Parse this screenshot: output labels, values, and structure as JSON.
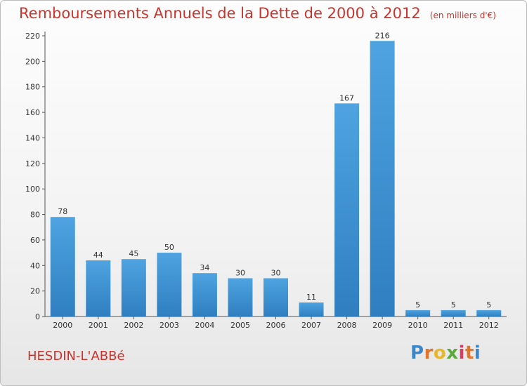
{
  "title": "Remboursements Annuels de la Dette de 2000 à 2012",
  "subtitle": "(en milliers d'€)",
  "commune": "HESDIN-L'ABBé",
  "logo": {
    "letters": [
      "P",
      "r",
      "o",
      "x",
      "i",
      "t",
      "i"
    ],
    "colors": [
      "#3b86c9",
      "#e0752d",
      "#e8b62c",
      "#5aa83e",
      "#d43d63",
      "#e0752d",
      "#3b86c9"
    ]
  },
  "colors": {
    "bar": "#4ea3e0",
    "bar_dark": "#2f7fc0",
    "title": "#c8342e"
  },
  "chart_data": {
    "type": "bar",
    "categories": [
      "2000",
      "2001",
      "2002",
      "2003",
      "2004",
      "2005",
      "2006",
      "2007",
      "2008",
      "2009",
      "2010",
      "2011",
      "2012"
    ],
    "values": [
      78,
      44,
      45,
      50,
      34,
      30,
      30,
      11,
      167,
      216,
      5,
      5,
      5
    ],
    "ylim": [
      0,
      220
    ],
    "yticks": [
      0,
      20,
      40,
      60,
      80,
      100,
      120,
      140,
      160,
      180,
      200,
      220
    ],
    "grid": false,
    "data_labels": true
  }
}
